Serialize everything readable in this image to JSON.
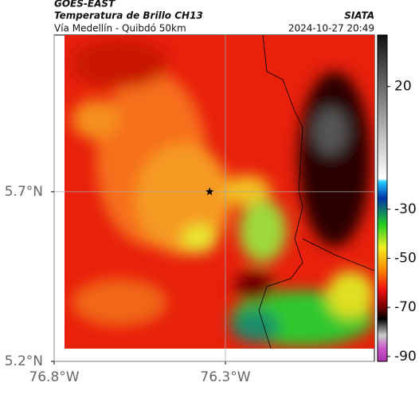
{
  "header": {
    "title": "GOES-EAST",
    "subtitle": "Temperatura de Brillo CH13",
    "route": "Vía Medellín - Quibdó 50km",
    "source": "SIATA",
    "timestamp": "2024-10-27 20:49"
  },
  "chart_data": {
    "type": "map",
    "xlim": [
      -76.8,
      -75.865
    ],
    "ylim": [
      5.2,
      6.162
    ],
    "xticks": [
      {
        "value": -76.8,
        "label": "76.8°W"
      },
      {
        "value": -76.3,
        "label": "76.3°W"
      }
    ],
    "yticks": [
      {
        "value": 5.2,
        "label": "5.2°N"
      },
      {
        "value": 5.7,
        "label": "5.7°N"
      }
    ],
    "grid": true,
    "marker": {
      "lon": -76.346,
      "lat": 5.7
    },
    "colorbar": {
      "lim": [
        -92,
        41
      ],
      "ticks": [
        20,
        -30,
        -50,
        -70,
        -90
      ]
    }
  }
}
